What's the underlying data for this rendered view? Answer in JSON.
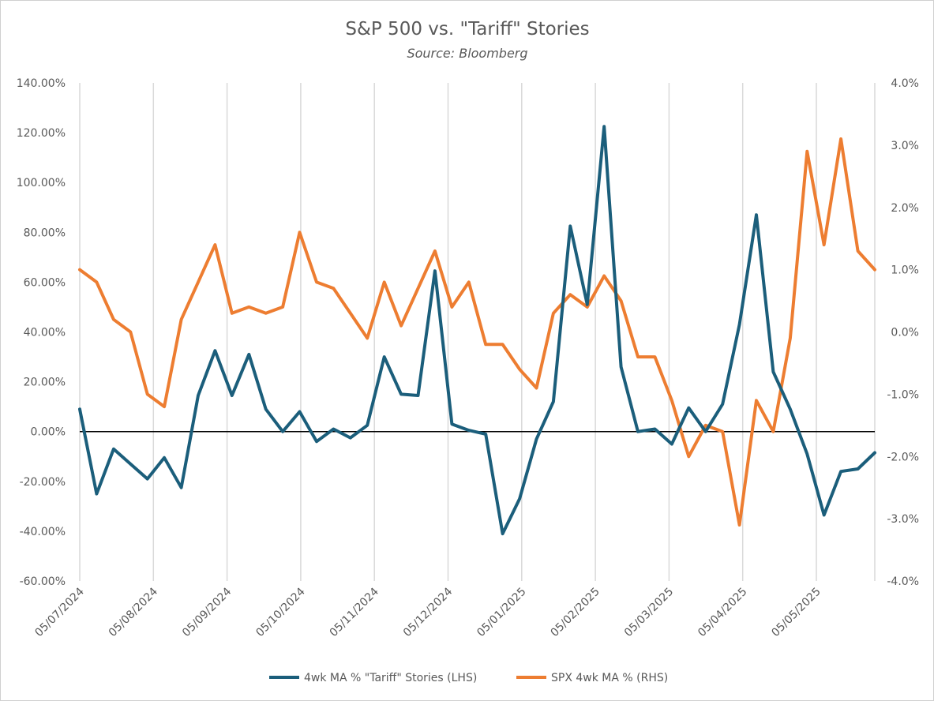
{
  "chart_data": {
    "type": "line",
    "title": "S&P 500 vs. \"Tariff\" Stories",
    "subtitle": "Source: Bloomberg",
    "x_tick_labels": [
      "05/07/2024",
      "05/08/2024",
      "05/09/2024",
      "05/10/2024",
      "05/11/2024",
      "05/12/2024",
      "05/01/2025",
      "05/02/2025",
      "05/03/2025",
      "05/04/2025",
      "05/05/2025"
    ],
    "y_left": {
      "min": -60,
      "max": 140,
      "step": 20,
      "tick_labels": [
        "140.00%",
        "120.00%",
        "100.00%",
        "80.00%",
        "60.00%",
        "40.00%",
        "20.00%",
        "0.00%",
        "-20.00%",
        "-40.00%",
        "-60.00%"
      ]
    },
    "y_right": {
      "min": -4,
      "max": 4,
      "step": 1,
      "tick_labels": [
        "4.0%",
        "3.0%",
        "2.0%",
        "1.0%",
        "0.0%",
        "-1.0%",
        "-2.0%",
        "-3.0%",
        "-4.0%"
      ]
    },
    "grid": "vertical",
    "zero_line": true,
    "legend_position": "bottom",
    "colors": {
      "tariff": "#1b5e7b",
      "spx": "#ed7d31",
      "grid": "#d9d9d9",
      "text": "#595959",
      "zero": "#000000"
    },
    "series": [
      {
        "name": "4wk MA % \"Tariff\" Stories (LHS)",
        "axis": "left",
        "values": [
          9,
          -25,
          -7,
          -13,
          -19,
          -10.5,
          -22.5,
          14.5,
          32.5,
          14.5,
          31,
          9,
          0,
          8,
          -4,
          1,
          -2.5,
          2.5,
          30,
          15,
          14.5,
          64.5,
          3,
          0.5,
          -1,
          -41,
          -27,
          -3,
          12,
          82.5,
          51,
          122.5,
          26,
          0,
          1,
          -5,
          9.5,
          0,
          11,
          43,
          87,
          24,
          9,
          -9,
          -33.5,
          -16,
          -15,
          -8.5
        ]
      },
      {
        "name": "SPX 4wk MA % (RHS)",
        "axis": "right",
        "values": [
          1.0,
          0.8,
          0.2,
          0.0,
          -1.0,
          -1.2,
          0.2,
          0.8,
          1.4,
          0.3,
          0.4,
          0.3,
          0.4,
          1.6,
          0.8,
          0.7,
          0.3,
          -0.1,
          0.8,
          0.1,
          0.7,
          1.3,
          0.4,
          0.8,
          -0.2,
          -0.2,
          -0.6,
          -0.9,
          0.3,
          0.6,
          0.4,
          0.9,
          0.5,
          -0.4,
          -0.4,
          -1.1,
          -2.0,
          -1.5,
          -1.6,
          -3.1,
          -1.1,
          -1.6,
          -0.1,
          2.9,
          1.4,
          3.1,
          1.3,
          1.0
        ]
      }
    ]
  }
}
